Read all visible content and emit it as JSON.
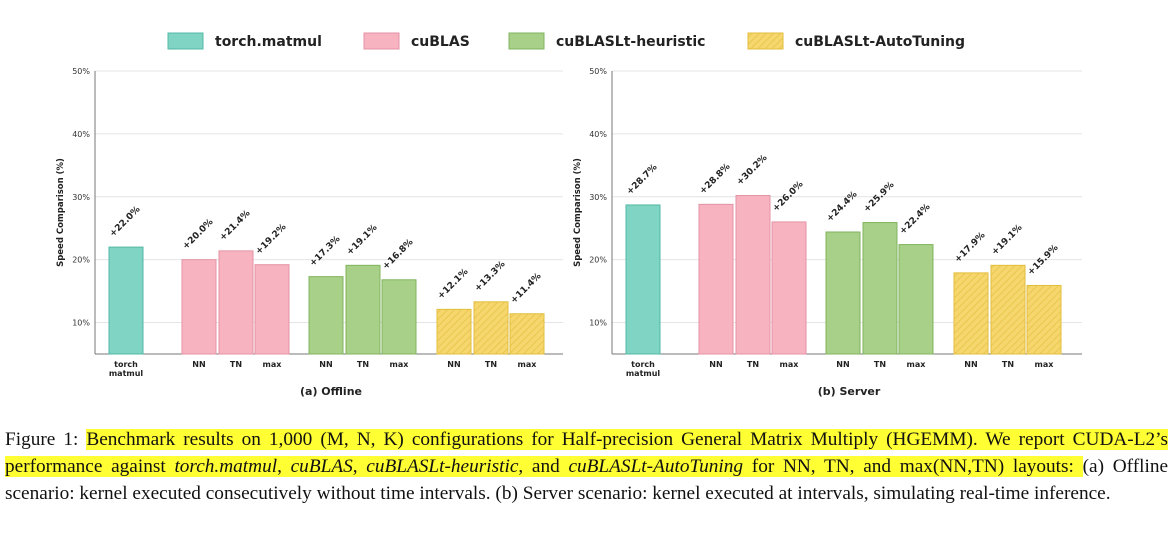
{
  "legend": [
    {
      "label": "torch.matmul",
      "color": "#80d4c3",
      "stroke": "#53b8a4",
      "hatch": false
    },
    {
      "label": "cuBLAS",
      "color": "#f7b3c0",
      "stroke": "#e493a4",
      "hatch": false
    },
    {
      "label": "cuBLASLt-heuristic",
      "color": "#a8d088",
      "stroke": "#7fb45d",
      "hatch": false
    },
    {
      "label": "cuBLASLt-AutoTuning",
      "color": "#f5d76e",
      "stroke": "#e2bd3c",
      "hatch": true
    }
  ],
  "chart_data": [
    {
      "type": "bar",
      "title": "(a) Offline",
      "ylabel": "Speed Comparison (%)",
      "ylim": [
        5,
        50
      ],
      "yticks": [
        "10%",
        "20%",
        "30%",
        "40%",
        "50%"
      ],
      "ytick_values": [
        10,
        20,
        30,
        40,
        50
      ],
      "groups": [
        {
          "series": "torch.matmul",
          "bars": [
            {
              "cat": "torch\nmatmul",
              "value": 22.0,
              "label": "+22.0%"
            }
          ]
        },
        {
          "series": "cuBLAS",
          "bars": [
            {
              "cat": "NN",
              "value": 20.0,
              "label": "+20.0%"
            },
            {
              "cat": "TN",
              "value": 21.4,
              "label": "+21.4%"
            },
            {
              "cat": "max",
              "value": 19.2,
              "label": "+19.2%"
            }
          ]
        },
        {
          "series": "cuBLASLt-heuristic",
          "bars": [
            {
              "cat": "NN",
              "value": 17.3,
              "label": "+17.3%"
            },
            {
              "cat": "TN",
              "value": 19.1,
              "label": "+19.1%"
            },
            {
              "cat": "max",
              "value": 16.8,
              "label": "+16.8%"
            }
          ]
        },
        {
          "series": "cuBLASLt-AutoTuning",
          "bars": [
            {
              "cat": "NN",
              "value": 12.1,
              "label": "+12.1%"
            },
            {
              "cat": "TN",
              "value": 13.3,
              "label": "+13.3%"
            },
            {
              "cat": "max",
              "value": 11.4,
              "label": "+11.4%"
            }
          ]
        }
      ]
    },
    {
      "type": "bar",
      "title": "(b) Server",
      "ylabel": "Speed Comparison (%)",
      "ylim": [
        5,
        50
      ],
      "yticks": [
        "10%",
        "20%",
        "30%",
        "40%",
        "50%"
      ],
      "ytick_values": [
        10,
        20,
        30,
        40,
        50
      ],
      "groups": [
        {
          "series": "torch.matmul",
          "bars": [
            {
              "cat": "torch\nmatmul",
              "value": 28.7,
              "label": "+28.7%"
            }
          ]
        },
        {
          "series": "cuBLAS",
          "bars": [
            {
              "cat": "NN",
              "value": 28.8,
              "label": "+28.8%"
            },
            {
              "cat": "TN",
              "value": 30.2,
              "label": "+30.2%"
            },
            {
              "cat": "max",
              "value": 26.0,
              "label": "+26.0%"
            }
          ]
        },
        {
          "series": "cuBLASLt-heuristic",
          "bars": [
            {
              "cat": "NN",
              "value": 24.4,
              "label": "+24.4%"
            },
            {
              "cat": "TN",
              "value": 25.9,
              "label": "+25.9%"
            },
            {
              "cat": "max",
              "value": 22.4,
              "label": "+22.4%"
            }
          ]
        },
        {
          "series": "cuBLASLt-AutoTuning",
          "bars": [
            {
              "cat": "NN",
              "value": 17.9,
              "label": "+17.9%"
            },
            {
              "cat": "TN",
              "value": 19.1,
              "label": "+19.1%"
            },
            {
              "cat": "max",
              "value": 15.9,
              "label": "+15.9%"
            }
          ]
        }
      ]
    }
  ],
  "caption": {
    "prefix": "Figure 1: ",
    "hl1": "Benchmark results on 1,000 (M, N, K) configurations for Half-precision General Matrix Multiply (HGEMM). We report CUDA-L2’s performance against ",
    "m1": "torch.matmul",
    "s1": ", ",
    "m2": "cuBLAS",
    "s2": ", ",
    "m3": "cuBLASLt-heuristic",
    "s3": ", and ",
    "m4": "cuBLASLt-AutoTuning",
    "s4": " for NN, TN, and max(NN,TN) layouts: ",
    "rest": "(a) Offline scenario: kernel executed consecutively without time intervals. (b) Server scenario: kernel executed at intervals, simulating real-time inference."
  }
}
